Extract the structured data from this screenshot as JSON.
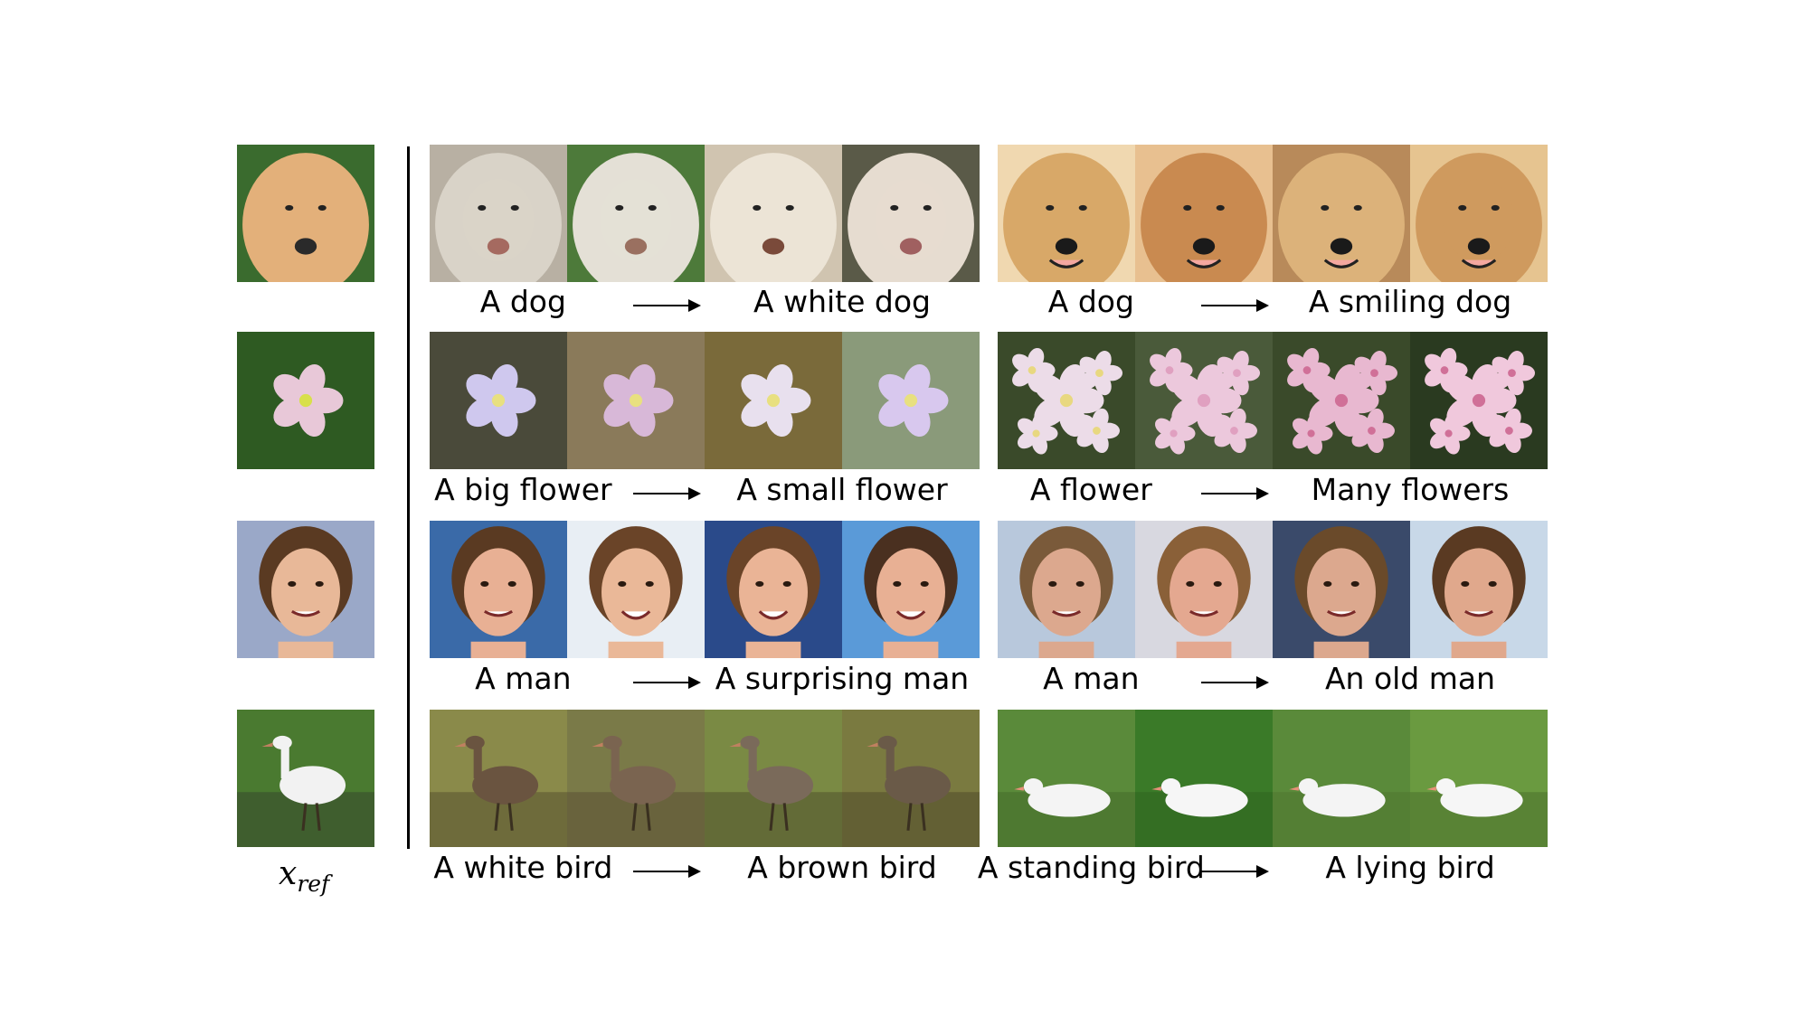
{
  "reference_label": {
    "main": "x",
    "sub": "ref"
  },
  "rows": [
    {
      "reference": {
        "subject": "afghan hound face",
        "palette": [
          "#e3b07a",
          "#3a6b2e",
          "#2a2a2a"
        ]
      },
      "left": {
        "source": "A dog",
        "target": "A white dog",
        "images": [
          {
            "palette": [
              "#d9d3c8",
              "#b8b0a3",
              "#a56a60"
            ]
          },
          {
            "palette": [
              "#e4e0d6",
              "#4d7a3a",
              "#9a7060"
            ]
          },
          {
            "palette": [
              "#ece4d6",
              "#d0c4b0",
              "#7a4a3a"
            ]
          },
          {
            "palette": [
              "#e6dcd0",
              "#5a5a48",
              "#a06060"
            ]
          }
        ]
      },
      "right": {
        "source": "A dog",
        "target": "A smiling dog",
        "images": [
          {
            "palette": [
              "#d8a868",
              "#f0d8b0",
              "#1a1a1a"
            ]
          },
          {
            "palette": [
              "#c98a50",
              "#e8c090",
              "#1a1a1a"
            ]
          },
          {
            "palette": [
              "#dcb27a",
              "#b88a5a",
              "#1a1a1a"
            ]
          },
          {
            "palette": [
              "#cf9a5e",
              "#e6c490",
              "#1a1a1a"
            ]
          }
        ]
      }
    },
    {
      "reference": {
        "subject": "pink flower on grass",
        "palette": [
          "#e8c8d8",
          "#2e5a22",
          "#d8e04a"
        ]
      },
      "left": {
        "source": "A big flower",
        "target": "A small flower",
        "images": [
          {
            "palette": [
              "#cfc8ee",
              "#4a4a3a",
              "#e8e080"
            ]
          },
          {
            "palette": [
              "#d8b8d8",
              "#8a7a5a",
              "#e8e080"
            ]
          },
          {
            "palette": [
              "#e8e0ee",
              "#7a6a3a",
              "#e8e080"
            ]
          },
          {
            "palette": [
              "#d8c8ee",
              "#8a9a7a",
              "#e8e080"
            ]
          }
        ]
      },
      "right": {
        "source": "A flower",
        "target": "Many flowers",
        "images": [
          {
            "palette": [
              "#ecdce8",
              "#3a4a2a",
              "#e8d880"
            ]
          },
          {
            "palette": [
              "#ecc8dc",
              "#4a5a3a",
              "#e0a0c0"
            ]
          },
          {
            "palette": [
              "#e8b8d0",
              "#3a4a2a",
              "#d07098"
            ]
          },
          {
            "palette": [
              "#f0c8dc",
              "#2a3a20",
              "#d07098"
            ]
          }
        ]
      }
    },
    {
      "reference": {
        "subject": "young man portrait",
        "palette": [
          "#e8b898",
          "#5a3a22",
          "#9aa8c8"
        ]
      },
      "left": {
        "source": "A man",
        "target": "A surprising man",
        "images": [
          {
            "palette": [
              "#e8b094",
              "#5a3a22",
              "#3a6aa8"
            ]
          },
          {
            "palette": [
              "#eab898",
              "#6a4428",
              "#e8eef4"
            ]
          },
          {
            "palette": [
              "#eab496",
              "#6a4428",
              "#2a4a8a"
            ]
          },
          {
            "palette": [
              "#e8b094",
              "#4a3020",
              "#5a9ad8"
            ]
          }
        ]
      },
      "right": {
        "source": "A man",
        "target": "An old man",
        "images": [
          {
            "palette": [
              "#dca88e",
              "#7a5a3a",
              "#b8c8dc"
            ]
          },
          {
            "palette": [
              "#e4a890",
              "#8a6038",
              "#d8d8e0"
            ]
          },
          {
            "palette": [
              "#dca88e",
              "#6a4a2a",
              "#3a4a6a"
            ]
          },
          {
            "palette": [
              "#e0a88c",
              "#5a3a22",
              "#c8d8e8"
            ]
          }
        ]
      }
    },
    {
      "reference": {
        "subject": "white goose on grass",
        "palette": [
          "#f2f2f2",
          "#4a7a30",
          "#2a2a2a"
        ]
      },
      "left": {
        "source": "A white bird",
        "target": "A brown bird",
        "images": [
          {
            "palette": [
              "#6a5440",
              "#8a8a4a",
              "#3a3020"
            ]
          },
          {
            "palette": [
              "#7a6450",
              "#7a7a48",
              "#4a3a2a"
            ]
          },
          {
            "palette": [
              "#7a6a5a",
              "#7a8a44",
              "#3a3020"
            ]
          },
          {
            "palette": [
              "#6a5a48",
              "#7a7a40",
              "#3a3020"
            ]
          }
        ]
      },
      "right": {
        "source": "A standing bird",
        "target": "A lying bird",
        "images": [
          {
            "palette": [
              "#f4f4f4",
              "#5a8a3a",
              "#3a5a22"
            ]
          },
          {
            "palette": [
              "#f6f6f6",
              "#3a7a28",
              "#2a5a1a"
            ]
          },
          {
            "palette": [
              "#f4f4f4",
              "#5a8a3a",
              "#4a6a2a"
            ]
          },
          {
            "palette": [
              "#f6f6f6",
              "#6a9a40",
              "#3a5a22"
            ]
          }
        ]
      }
    }
  ]
}
